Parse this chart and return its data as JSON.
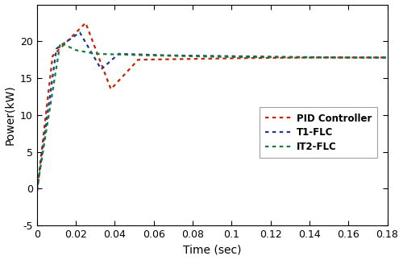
{
  "title": "",
  "xlabel": "Time (sec)",
  "ylabel": "Power(kW)",
  "xlim": [
    0,
    0.18
  ],
  "ylim": [
    -5,
    25
  ],
  "yticks": [
    -5,
    0,
    5,
    10,
    15,
    20
  ],
  "xticks": [
    0,
    0.02,
    0.04,
    0.06,
    0.08,
    0.1,
    0.12,
    0.14,
    0.16,
    0.18
  ],
  "xtick_labels": [
    "0",
    "0.02",
    "0.04",
    "0.06",
    "0.08",
    "0.1",
    "0.12",
    "0.14",
    "0.16",
    "0.18"
  ],
  "legend": [
    "PID Controller",
    "T1-FLC",
    "IT2-FLC"
  ],
  "colors": {
    "pid": "#cc2200",
    "t1": "#1a3a8a",
    "it2": "#1a7a3a"
  },
  "background": "#ffffff"
}
